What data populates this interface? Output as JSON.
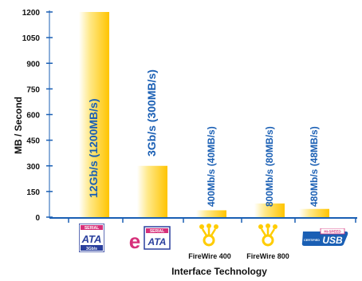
{
  "chart_data": {
    "type": "bar",
    "categories": [
      "Serial ATA",
      "eSATA",
      "FireWire 400",
      "FireWire 800",
      "Hi-Speed USB"
    ],
    "values": [
      1200,
      300,
      40,
      80,
      48
    ],
    "bar_labels": [
      "12Gb/s (1200MB/s)",
      "3Gb/s (300MB/s)",
      "400Mb/s (40MB/s)",
      "800Mb/s (80MB/s)",
      "480Mb/s (48MB/s)"
    ],
    "xlabel": "Interface Technology",
    "ylabel": "MB / Second",
    "ylim": [
      0,
      1200
    ],
    "yticks": [
      0,
      150,
      300,
      450,
      600,
      750,
      900,
      1050,
      1200
    ],
    "ytick_labels": [
      "0",
      "150",
      "300",
      "450",
      "600",
      "750",
      "900",
      "1050",
      "1200"
    ],
    "grid": false,
    "bar_label_color": "#1a5fb4",
    "axis_color": "#1a5fb4"
  },
  "logos": {
    "sata_text_top": "SERIAL",
    "sata_text_main": "ATA",
    "sata_text_sub": "3Gb/s",
    "esata_prefix": "e",
    "esata_text_top": "SERIAL",
    "esata_text_main": "ATA",
    "firewire400_caption": "FireWire 400",
    "firewire800_caption": "FireWire 800",
    "usb_text_top": "HI-SPEED",
    "usb_text_side": "CERTIFIED",
    "usb_text_main": "USB"
  },
  "colors": {
    "bar_gradient_top": "#ffc400",
    "bar_gradient_mid": "#ffe98a",
    "bar_gradient_edge": "#ffffff",
    "sata_blue": "#2a3f9d",
    "esata_magenta": "#d6307a",
    "firewire_yellow": "#ffcc00"
  }
}
